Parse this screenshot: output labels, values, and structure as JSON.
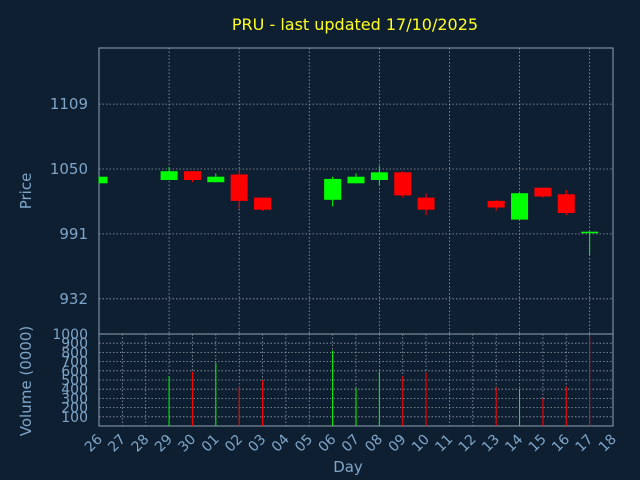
{
  "title": "PRU - last updated 17/10/2025",
  "colors": {
    "background": "#0f1f32",
    "up": "#00ff00",
    "down": "#ff0000",
    "title": "#ffff22",
    "text": "#7fa6c8"
  },
  "chart_data": [
    {
      "type": "candlestick",
      "ylabel": "Price",
      "ylim": [
        900,
        1160
      ],
      "yticks": [
        "932",
        "991",
        "1050",
        "1109"
      ],
      "grid": true,
      "days": [
        "26",
        "27",
        "28",
        "29",
        "30",
        "01",
        "02",
        "03",
        "04",
        "05",
        "06",
        "07",
        "08",
        "09",
        "10",
        "11",
        "12",
        "13",
        "14",
        "15",
        "16",
        "17",
        "18"
      ],
      "candles": [
        {
          "day": "26",
          "open": 1037,
          "close": 1043,
          "high": 1043,
          "low": 1037
        },
        {
          "day": "29",
          "open": 1040,
          "close": 1048,
          "high": 1052,
          "low": 1040
        },
        {
          "day": "30",
          "open": 1048,
          "close": 1040,
          "high": 1048,
          "low": 1038
        },
        {
          "day": "01",
          "open": 1038,
          "close": 1043,
          "high": 1046,
          "low": 1038
        },
        {
          "day": "02",
          "open": 1045,
          "close": 1021,
          "high": 1048,
          "low": 1014
        },
        {
          "day": "03",
          "open": 1024,
          "close": 1013,
          "high": 1024,
          "low": 1012
        },
        {
          "day": "06",
          "open": 1022,
          "close": 1041,
          "high": 1043,
          "low": 1016
        },
        {
          "day": "07",
          "open": 1037,
          "close": 1043,
          "high": 1046,
          "low": 1037
        },
        {
          "day": "08",
          "open": 1040,
          "close": 1047,
          "high": 1053,
          "low": 1035
        },
        {
          "day": "09",
          "open": 1047,
          "close": 1026,
          "high": 1048,
          "low": 1024
        },
        {
          "day": "10",
          "open": 1024,
          "close": 1013,
          "high": 1028,
          "low": 1008
        },
        {
          "day": "13",
          "open": 1021,
          "close": 1015,
          "high": 1022,
          "low": 1012
        },
        {
          "day": "14",
          "open": 1004,
          "close": 1028,
          "high": 1028,
          "low": 1004
        },
        {
          "day": "15",
          "open": 1033,
          "close": 1025,
          "high": 1033,
          "low": 1024
        },
        {
          "day": "16",
          "open": 1027,
          "close": 1010,
          "high": 1031,
          "low": 1008
        },
        {
          "day": "17",
          "open": 993,
          "close": 993,
          "high": 993,
          "low": 972
        }
      ]
    },
    {
      "type": "bar",
      "ylabel": "Volume (0000)",
      "xlabel": "Day",
      "ylim": [
        0,
        1000
      ],
      "yticks": [
        "100",
        "200",
        "300",
        "400",
        "500",
        "600",
        "700",
        "800",
        "900",
        "1000"
      ],
      "grid": true,
      "bars": [
        {
          "day": "29",
          "value": 540,
          "direction": "up"
        },
        {
          "day": "30",
          "value": 590,
          "direction": "down"
        },
        {
          "day": "01",
          "value": 680,
          "direction": "up"
        },
        {
          "day": "02",
          "value": 420,
          "direction": "down"
        },
        {
          "day": "03",
          "value": 500,
          "direction": "down"
        },
        {
          "day": "06",
          "value": 820,
          "direction": "up"
        },
        {
          "day": "07",
          "value": 410,
          "direction": "up"
        },
        {
          "day": "08",
          "value": 590,
          "direction": "up"
        },
        {
          "day": "09",
          "value": 540,
          "direction": "down"
        },
        {
          "day": "10",
          "value": 580,
          "direction": "down"
        },
        {
          "day": "13",
          "value": 420,
          "direction": "down"
        },
        {
          "day": "14",
          "value": 400,
          "direction": "up"
        },
        {
          "day": "15",
          "value": 300,
          "direction": "down"
        },
        {
          "day": "16",
          "value": 430,
          "direction": "down"
        },
        {
          "day": "17",
          "value": 980,
          "direction": "down"
        }
      ]
    }
  ]
}
